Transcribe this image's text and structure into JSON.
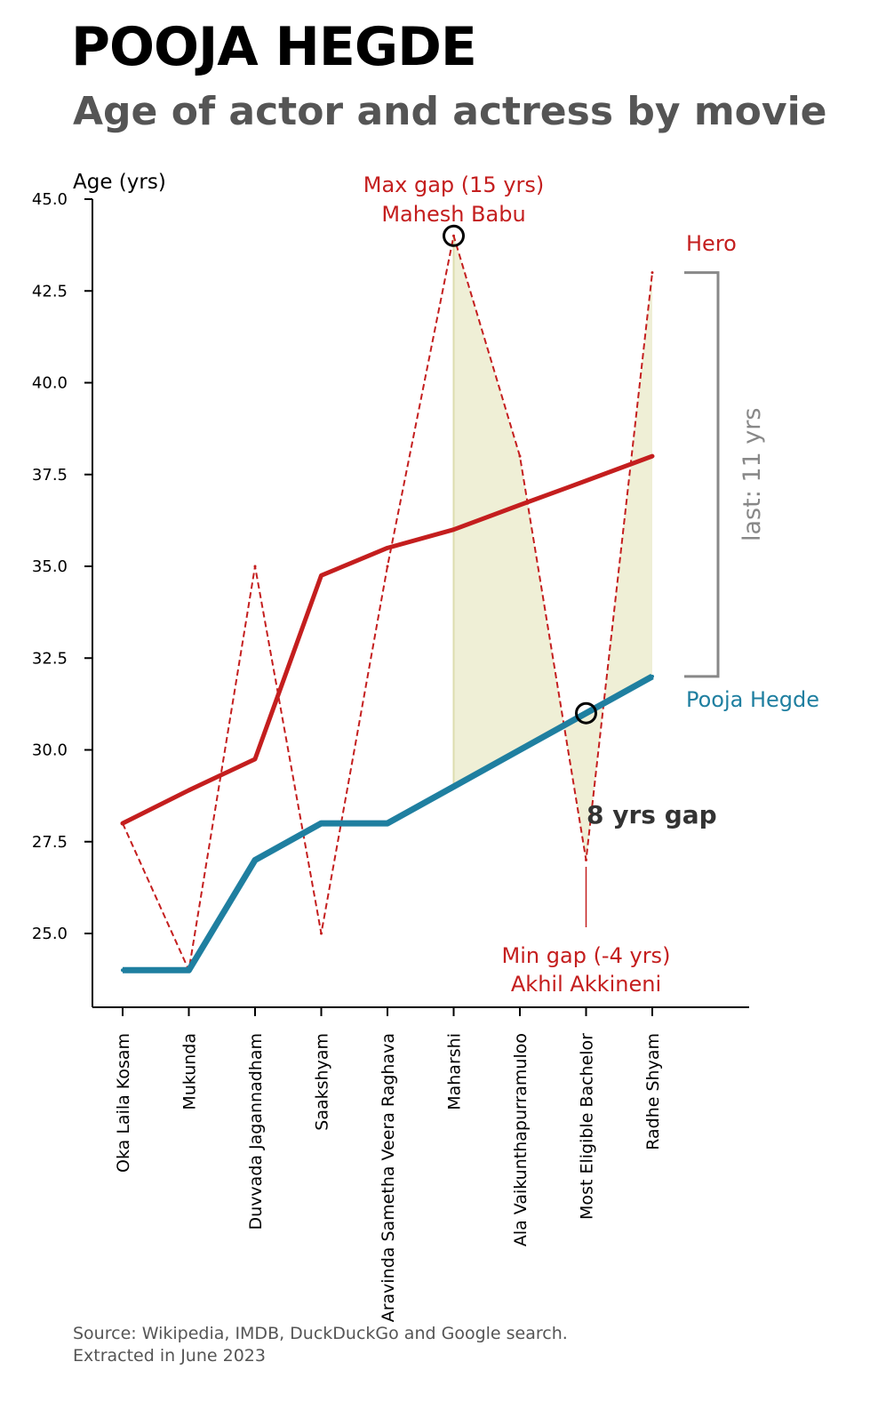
{
  "header": {
    "title": "POOJA HEGDE",
    "subtitle": "Age of actor and actress by movie"
  },
  "footer": {
    "source_line1": "Source: Wikipedia, IMDB, DuckDuckGo and Google search.",
    "source_line2": "Extracted in June 2023"
  },
  "colors": {
    "hero": "#c41e1e",
    "actress": "#1f7fa0",
    "gap_fill": "#efefd6",
    "bracket": "#888888"
  },
  "chart_data": {
    "type": "line",
    "ylabel": "Age (yrs)",
    "xlabel": "",
    "ylim": [
      22.8,
      45.0
    ],
    "yticks": [
      25.0,
      27.5,
      30.0,
      32.5,
      35.0,
      37.5,
      40.0,
      42.5,
      45.0
    ],
    "grid": false,
    "categories": [
      "Oka Laila Kosam",
      "Mukunda",
      "Duvvada Jagannadham",
      "Saakshyam",
      "Aravinda Sametha Veera Raghava",
      "Maharshi",
      "Ala Vaikunthapurramuloo",
      "Most Eligible Bachelor",
      "Radhe Shyam"
    ],
    "series": [
      {
        "name": "Hero",
        "role": "hero_age",
        "style": "dashed",
        "values": [
          28,
          24,
          35,
          25,
          35,
          44,
          38,
          27,
          43
        ]
      },
      {
        "name": "Pooja Hegde",
        "role": "actress_age",
        "style": "solid",
        "values": [
          24,
          24,
          27,
          28,
          28,
          29,
          30,
          31,
          32
        ]
      },
      {
        "name": "",
        "role": "hero_trend",
        "style": "solid",
        "values": [
          28,
          28.9,
          29.75,
          34.75,
          35.5,
          36,
          36.67,
          37.33,
          38
        ]
      }
    ],
    "shaded_from_index": 5,
    "annotations": {
      "max_gap_line1": "Max gap (15 yrs)",
      "max_gap_line2": "Mahesh Babu",
      "max_gap_index": 5,
      "max_gap_value": 44,
      "min_gap_line1": "Min gap (-4 yrs)",
      "min_gap_line2": "Akhil Akkineni",
      "min_gap_index": 7,
      "min_gap_value": 31,
      "hero_label": "Hero",
      "actress_label": "Pooja Hegde",
      "last_gap_label": "last: 11 yrs",
      "last_gap_range": [
        32,
        43
      ],
      "current_gap_label": "8 yrs gap"
    }
  }
}
